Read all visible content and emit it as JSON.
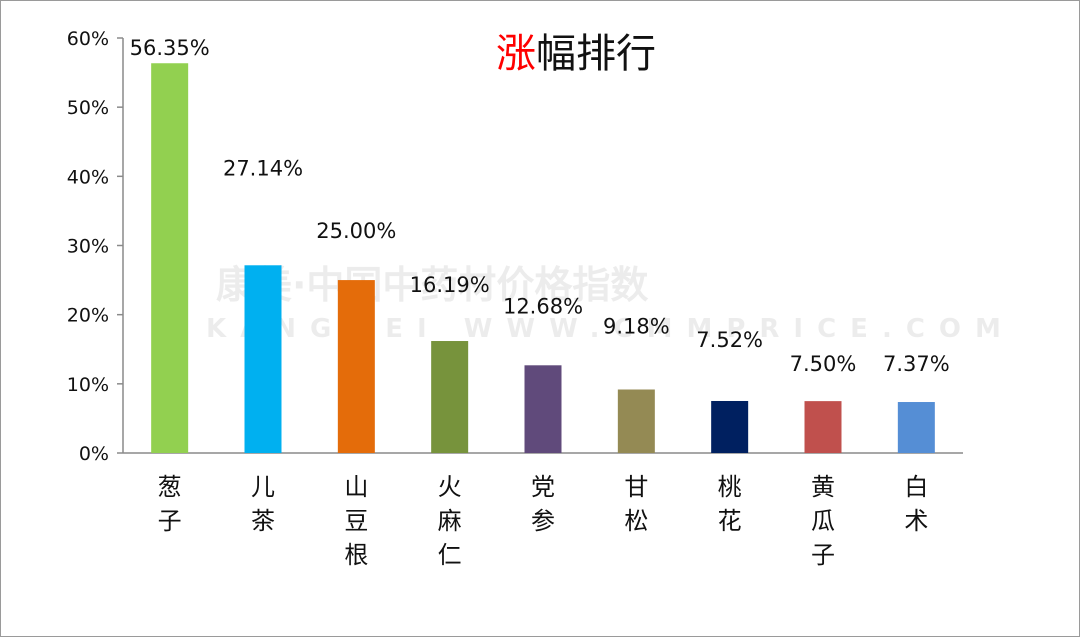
{
  "chart_data": {
    "type": "bar",
    "title_highlight": "涨",
    "title_rest": "幅排行",
    "categories": [
      "葱子",
      "儿茶",
      "山豆根",
      "火麻仁",
      "党参",
      "甘松",
      "桃花",
      "黄瓜子",
      "白术"
    ],
    "values": [
      56.35,
      27.14,
      25.0,
      16.19,
      12.68,
      9.18,
      7.52,
      7.5,
      7.37
    ],
    "data_labels": [
      "56.35%",
      "27.14%",
      "25.00%",
      "16.19%",
      "12.68%",
      "9.18%",
      "7.52%",
      "7.50%",
      "7.37%"
    ],
    "bar_colors": [
      "#92d050",
      "#00b0f0",
      "#e46c0a",
      "#77933c",
      "#604a7b",
      "#948a54",
      "#002060",
      "#c0504d",
      "#558ed5"
    ],
    "title_highlight_color": "#ff0000",
    "ylim": [
      0,
      60
    ],
    "yticks": [
      0,
      10,
      20,
      30,
      40,
      50,
      60
    ],
    "ytick_labels": [
      "0%",
      "10%",
      "20%",
      "30%",
      "40%",
      "50%",
      "60%"
    ],
    "grid": false,
    "legend": "none"
  },
  "watermark": {
    "main": "康美·中国中药材价格指数",
    "sub": "KANGMEI WWW.CMMPRICE.COM"
  }
}
